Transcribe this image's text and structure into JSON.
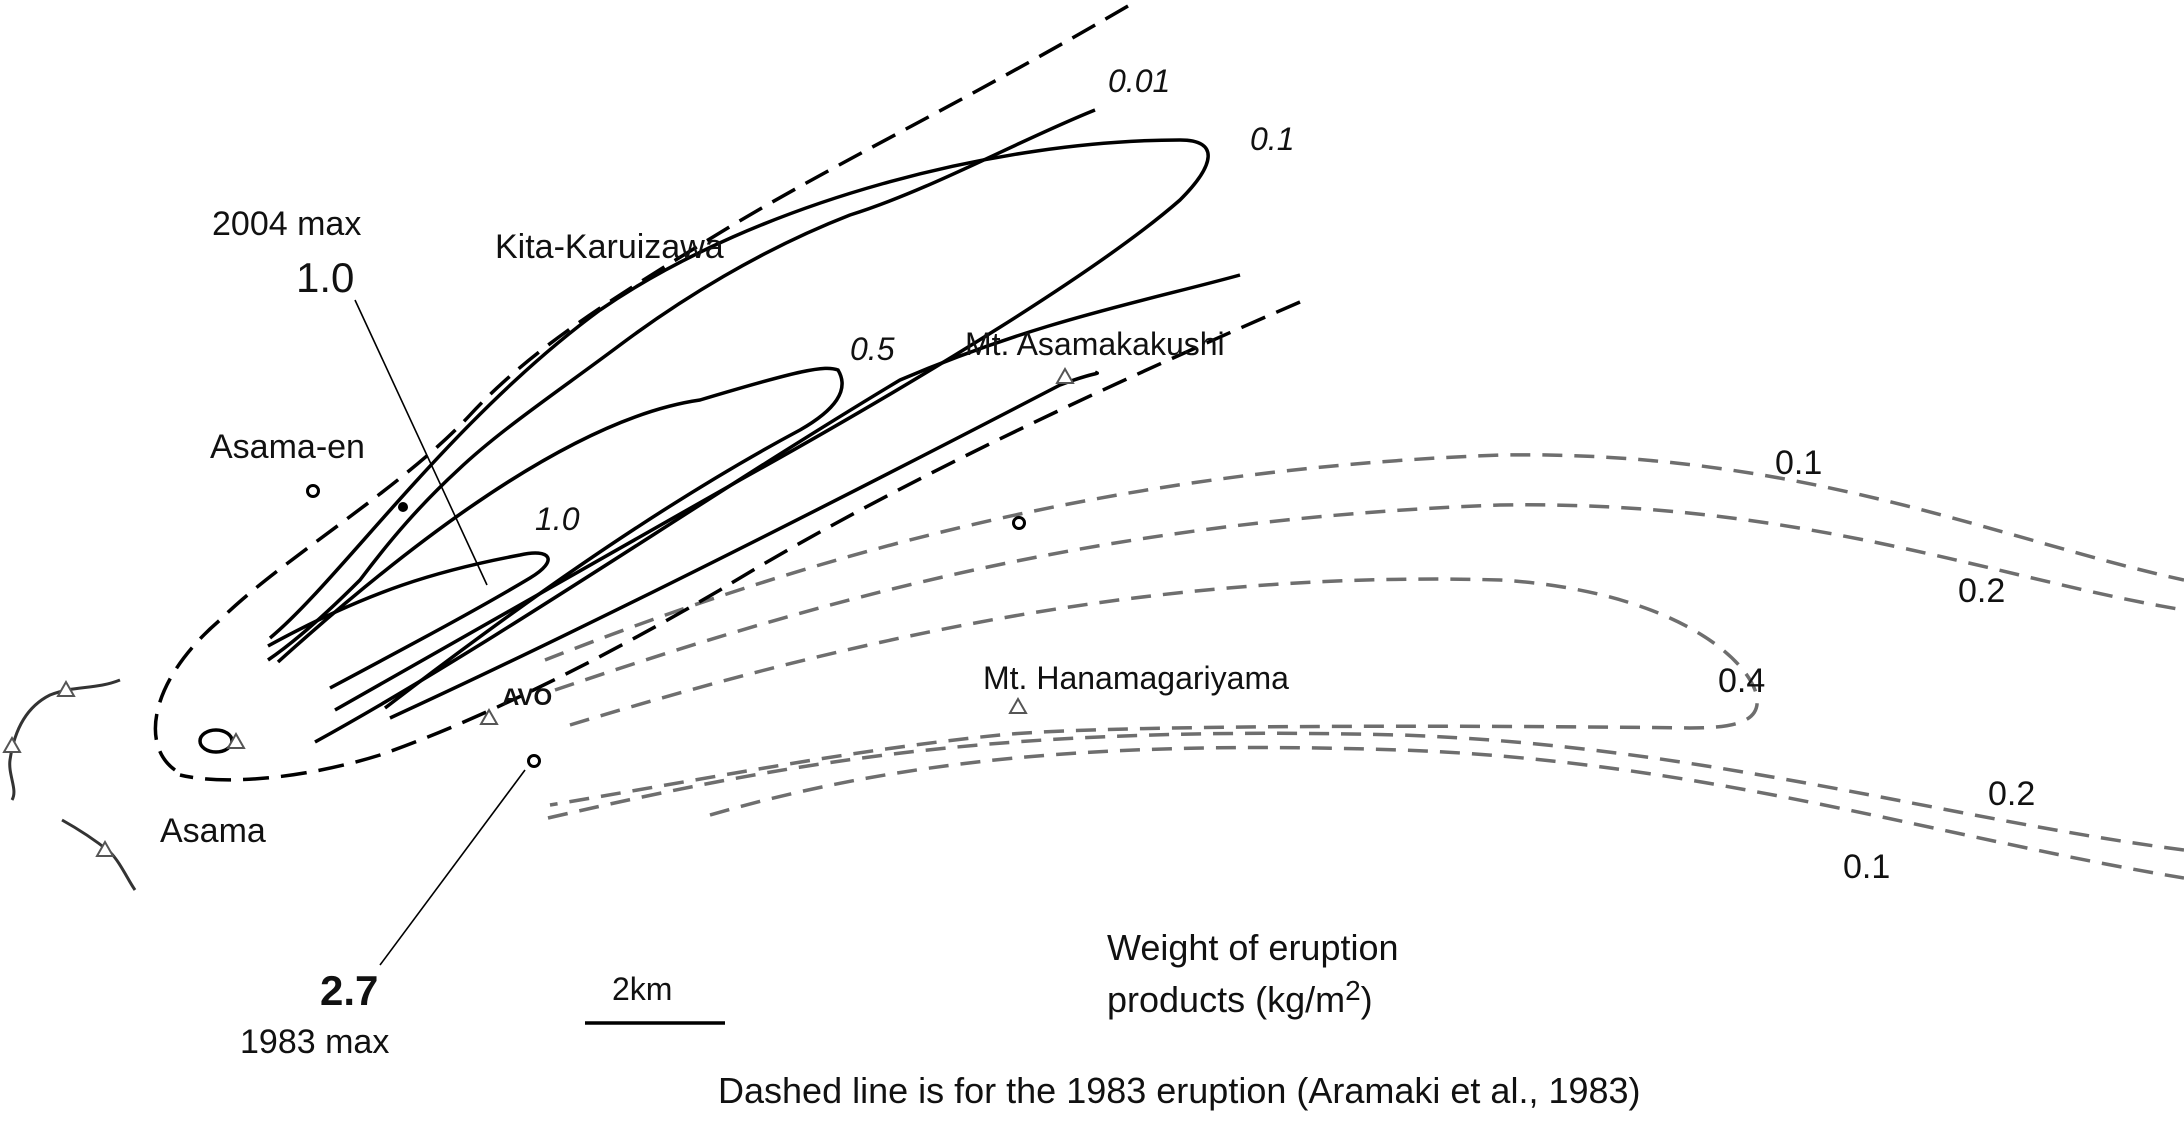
{
  "labels": {
    "max2004_caption": "2004 max",
    "max2004_value": "1.0",
    "max1983_value": "2.7",
    "max1983_caption": "1983 max",
    "avo": "AVO",
    "scale_bar": "2km",
    "legend_line1": "Weight of eruption",
    "legend_line2_prefix": "products (kg/m",
    "legend_line2_sup": "2",
    "legend_line2_suffix": ")",
    "footnote": "Dashed line is for the 1983 eruption (Aramaki et al., 1983)"
  },
  "places": {
    "kita_karuizawa": "Kita-Karuizawa",
    "asama_en": "Asama-en",
    "asama": "Asama",
    "mt_asamakakushi": "Mt. Asamakakushi",
    "mt_hanamagariyama": "Mt. Hanamagariyama"
  },
  "contours_2004": [
    "0.01",
    "0.1",
    "0.5",
    "1.0"
  ],
  "contours_1983": {
    "upper_outer": "0.1",
    "upper_inner": "0.2",
    "core": "0.4",
    "lower_inner": "0.2",
    "lower_outer": "0.1"
  },
  "colors": {
    "contour_2004": "#000000",
    "contour_1983": "#6e6e6e"
  }
}
